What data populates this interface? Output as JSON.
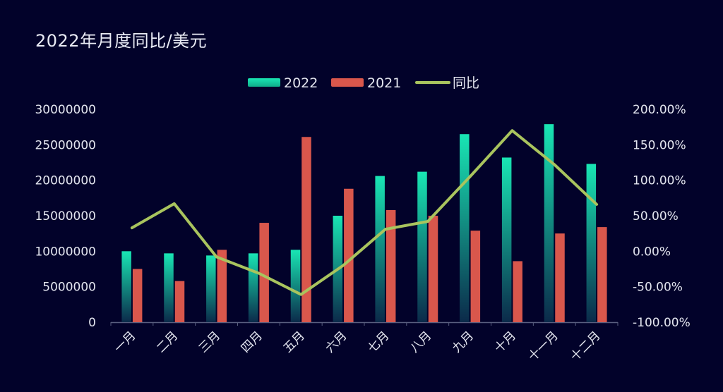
{
  "chart_data": {
    "type": "bar",
    "title": "2022年月度同比/美元",
    "categories": [
      "一月",
      "二月",
      "三月",
      "四月",
      "五月",
      "六月",
      "七月",
      "八月",
      "九月",
      "十月",
      "十一月",
      "十二月"
    ],
    "series": [
      {
        "name": "2022",
        "type": "bar",
        "axis": "left",
        "values": [
          10000000,
          9700000,
          9400000,
          9700000,
          10200000,
          15000000,
          20600000,
          21200000,
          26500000,
          23200000,
          27900000,
          22300000
        ]
      },
      {
        "name": "2021",
        "type": "bar",
        "axis": "right-none",
        "values": [
          7500000,
          5800000,
          10200000,
          14000000,
          26100000,
          18800000,
          15800000,
          15000000,
          12900000,
          8600000,
          12500000,
          13400000
        ]
      },
      {
        "name": "同比",
        "type": "line",
        "axis": "right",
        "unit": "%",
        "values": [
          33,
          67,
          -8,
          -31,
          -61,
          -20,
          31,
          42,
          105,
          170,
          122,
          66
        ]
      }
    ],
    "left_axis": {
      "ylim": [
        0,
        30000000
      ],
      "ticks": [
        "0",
        "5000000",
        "10000000",
        "15000000",
        "20000000",
        "25000000",
        "30000000"
      ]
    },
    "right_axis": {
      "ylim": [
        -100,
        200
      ],
      "ticks": [
        "-100.00%",
        "-50.00%",
        "0.00%",
        "50.00%",
        "100.00%",
        "150.00%",
        "200.00%"
      ]
    },
    "legend_position": "top-center",
    "grid": false,
    "colors": {
      "background": "#02022a",
      "bar_2022_top": "#19e6b4",
      "bar_2022_bottom": "#0b2a4a",
      "bar_2021": "#d9574c",
      "line": "#a9c45e",
      "axis_text": "#e4e6f0",
      "axis_line": "#5a5f80"
    }
  }
}
